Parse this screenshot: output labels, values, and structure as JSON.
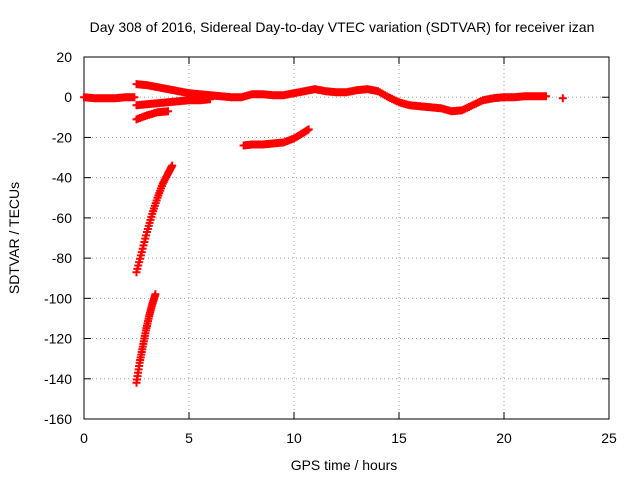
{
  "chart_data": {
    "type": "scatter",
    "title": "Day 308 of 2016, Sidereal Day-to-day VTEC variation (SDTVAR) for receiver izan",
    "xlabel": "GPS time / hours",
    "ylabel": "SDTVAR / TECUs",
    "xlim": [
      0,
      25
    ],
    "ylim": [
      -160,
      20
    ],
    "xticks": [
      0,
      5,
      10,
      15,
      20,
      25
    ],
    "yticks": [
      -160,
      -140,
      -120,
      -100,
      -80,
      -60,
      -40,
      -20,
      0,
      20
    ],
    "grid": true,
    "marker": "+",
    "color": "#ff0000",
    "series": [
      {
        "points": [
          [
            0,
            0
          ],
          [
            0.5,
            -0.5
          ],
          [
            1,
            -0.5
          ],
          [
            1.5,
            -0.5
          ],
          [
            2,
            0
          ],
          [
            2.4,
            0
          ]
        ]
      },
      {
        "points": [
          [
            2.5,
            6.5
          ],
          [
            3,
            6
          ],
          [
            3.5,
            5
          ],
          [
            4,
            4
          ],
          [
            4.5,
            3
          ],
          [
            5,
            2
          ],
          [
            5.5,
            1.5
          ],
          [
            6,
            1
          ],
          [
            6.5,
            0.5
          ],
          [
            7,
            0
          ],
          [
            7.5,
            0
          ],
          [
            8,
            1.5
          ],
          [
            8.5,
            1.5
          ],
          [
            9,
            1
          ],
          [
            9.5,
            1
          ],
          [
            10,
            2
          ],
          [
            10.5,
            3
          ],
          [
            11,
            4
          ],
          [
            11.5,
            3
          ],
          [
            12,
            2.5
          ],
          [
            12.5,
            2.5
          ],
          [
            13,
            3.5
          ],
          [
            13.5,
            4
          ],
          [
            14,
            3
          ],
          [
            14.5,
            0
          ],
          [
            15,
            -2.5
          ],
          [
            15.5,
            -4
          ],
          [
            16,
            -4.5
          ],
          [
            16.5,
            -5
          ],
          [
            17,
            -5.5
          ],
          [
            17.5,
            -7
          ],
          [
            18,
            -6.5
          ],
          [
            18.5,
            -4
          ],
          [
            19,
            -1.5
          ],
          [
            19.5,
            -0.5
          ],
          [
            20,
            0
          ],
          [
            20.5,
            0
          ],
          [
            21,
            0.5
          ],
          [
            21.5,
            0.5
          ],
          [
            22,
            0.5
          ]
        ]
      },
      {
        "points": [
          [
            22.8,
            -0.5
          ]
        ]
      },
      {
        "points": [
          [
            2.5,
            -4
          ],
          [
            3,
            -3.5
          ],
          [
            3.5,
            -3
          ],
          [
            4,
            -2.5
          ],
          [
            4.5,
            -2
          ],
          [
            5,
            -1.5
          ],
          [
            5.5,
            -1.5
          ],
          [
            6,
            -1
          ]
        ]
      },
      {
        "points": [
          [
            2.5,
            -11
          ],
          [
            3,
            -9
          ],
          [
            3.5,
            -7.5
          ],
          [
            4,
            -7
          ]
        ]
      },
      {
        "points": [
          [
            7.6,
            -24
          ],
          [
            8,
            -23.5
          ],
          [
            8.5,
            -23.5
          ],
          [
            9,
            -23
          ],
          [
            9.5,
            -22.5
          ],
          [
            10,
            -20.5
          ],
          [
            10.4,
            -18
          ],
          [
            10.7,
            -16
          ]
        ]
      },
      {
        "points": [
          [
            2.5,
            -87
          ],
          [
            2.75,
            -77
          ],
          [
            3,
            -67
          ],
          [
            3.25,
            -58
          ],
          [
            3.5,
            -50
          ],
          [
            3.75,
            -43
          ],
          [
            4,
            -38
          ],
          [
            4.2,
            -34
          ]
        ]
      },
      {
        "points": [
          [
            2.5,
            -142
          ],
          [
            2.65,
            -132
          ],
          [
            2.8,
            -124
          ],
          [
            2.95,
            -116
          ],
          [
            3.1,
            -109
          ],
          [
            3.25,
            -103
          ],
          [
            3.4,
            -98
          ]
        ]
      }
    ]
  }
}
